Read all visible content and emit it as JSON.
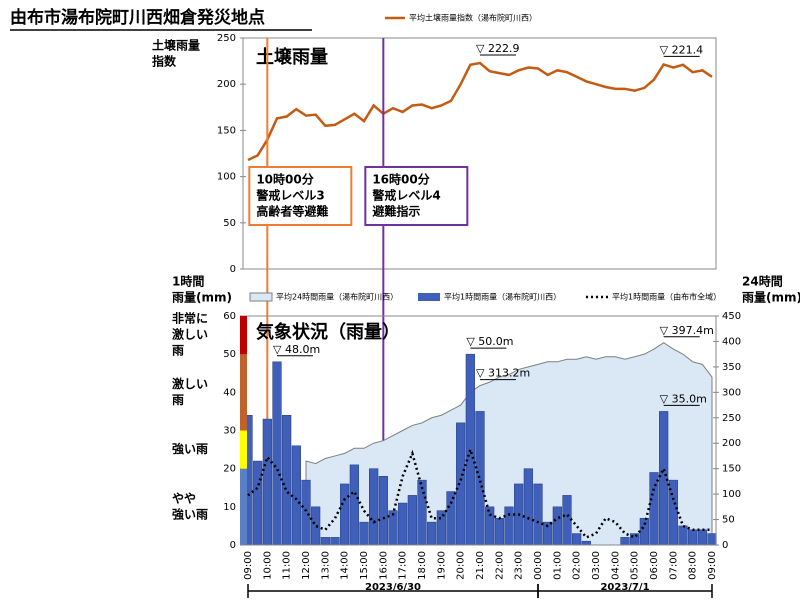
{
  "title": "由布市湯布院町川西畑倉発災地点",
  "chart_data": [
    {
      "type": "line",
      "panel_title": "土壌雨量",
      "ylabel": [
        "土壌雨量",
        "指数"
      ],
      "categories": [
        "09:00",
        null,
        "10:00",
        null,
        "11:00",
        null,
        "12:00",
        null,
        "13:00",
        null,
        "14:00",
        null,
        "15:00",
        null,
        "16:00",
        null,
        "17:00",
        null,
        "18:00",
        null,
        "19:00",
        null,
        "20:00",
        null,
        "21:00",
        null,
        "22:00",
        null,
        "23:00",
        null,
        "00:00",
        null,
        "01:00",
        null,
        "02:00",
        null,
        "03:00",
        null,
        "04:00",
        null,
        "05:00",
        null,
        "06:00",
        null,
        "07:00",
        null,
        "08:00",
        null,
        "09:00"
      ],
      "series": [
        {
          "name": "平均土壌雨量指数（湯布院町川西）",
          "color": "#c55a11",
          "values": [
            118,
            123,
            140,
            163,
            165,
            173,
            166,
            167,
            155,
            156,
            162,
            168,
            160,
            177,
            168,
            174,
            170,
            177,
            178,
            174,
            177,
            182,
            200,
            221,
            222.9,
            214,
            212,
            210,
            215,
            218,
            217,
            210,
            215,
            213,
            208,
            203,
            200,
            197,
            195,
            195,
            193,
            196,
            205,
            221.4,
            218,
            221,
            213,
            215,
            208
          ],
          "value_labels": [
            null,
            null,
            null,
            null,
            null,
            null,
            null,
            null,
            null,
            null,
            null,
            null,
            null,
            null,
            null,
            null,
            null,
            null,
            null,
            null,
            null,
            null,
            null,
            null,
            "▽ 222.9",
            null,
            null,
            null,
            null,
            null,
            null,
            null,
            null,
            null,
            null,
            null,
            null,
            null,
            null,
            null,
            null,
            null,
            null,
            "▽ 221.4",
            null,
            null,
            null,
            null,
            null
          ]
        }
      ],
      "ylim": [
        0,
        250
      ],
      "yticks": [
        0,
        50,
        100,
        150,
        200,
        250
      ],
      "grid": false,
      "events": [
        {
          "x": "10:00",
          "color": "#ed7d31",
          "text": [
            "10時00分",
            "警戒レベル3",
            "高齢者等避難"
          ]
        },
        {
          "x": "16:00",
          "color": "#7030a0",
          "text": [
            "16時00分",
            "警戒レベル4",
            "避難指示"
          ]
        }
      ]
    },
    {
      "type": "combo",
      "panel_title": "気象状況（雨量）",
      "ylabel": [
        "1時間",
        "雨量(mm)"
      ],
      "y2label": [
        "24時間",
        "雨量(mm)"
      ],
      "categories": [
        "09:00",
        null,
        "10:00",
        null,
        "11:00",
        null,
        "12:00",
        null,
        "13:00",
        null,
        "14:00",
        null,
        "15:00",
        null,
        "16:00",
        null,
        "17:00",
        null,
        "18:00",
        null,
        "19:00",
        null,
        "20:00",
        null,
        "21:00",
        null,
        "22:00",
        null,
        "23:00",
        null,
        "00:00",
        null,
        "01:00",
        null,
        "02:00",
        null,
        "03:00",
        null,
        "04:00",
        null,
        "05:00",
        null,
        "06:00",
        null,
        "07:00",
        null,
        "08:00",
        null,
        "09:00"
      ],
      "dates": [
        {
          "label": "2023/6/30",
          "from": "09:00",
          "to": "00:00"
        },
        {
          "label": "2023/7/1",
          "from": "00:00",
          "to": "09:00"
        }
      ],
      "series": [
        {
          "name": "平均24時間雨量（湯布院町川西）",
          "kind": "area",
          "axis": "y2",
          "color": "#dae8f6",
          "edge": "#7f7f7f",
          "values": [
            null,
            null,
            null,
            null,
            null,
            null,
            165,
            160,
            170,
            175,
            180,
            190,
            190,
            200,
            205,
            215,
            225,
            235,
            240,
            250,
            255,
            265,
            275,
            300,
            313.2,
            320,
            330,
            335,
            345,
            350,
            355,
            360,
            360,
            365,
            365,
            370,
            365,
            370,
            370,
            365,
            370,
            375,
            385,
            397.4,
            385,
            375,
            360,
            355,
            330
          ],
          "value_labels": [
            null,
            null,
            null,
            null,
            null,
            null,
            null,
            null,
            null,
            null,
            null,
            null,
            null,
            null,
            null,
            null,
            null,
            null,
            null,
            null,
            null,
            null,
            null,
            null,
            "▽ 313.2m",
            null,
            null,
            null,
            null,
            null,
            null,
            null,
            null,
            null,
            null,
            null,
            null,
            null,
            null,
            null,
            null,
            null,
            null,
            "▽ 397.4m",
            null,
            null,
            null,
            null,
            null
          ]
        },
        {
          "name": "平均1時間雨量（湯布院町川西）",
          "kind": "bar",
          "color": "#3f5fb8",
          "values": [
            34,
            22,
            33,
            48,
            34,
            26,
            17,
            10,
            2,
            2,
            16,
            21,
            6,
            20,
            18,
            9,
            11,
            13,
            17,
            6,
            9,
            14,
            32,
            50,
            35,
            10,
            7,
            10,
            16,
            20,
            16,
            6,
            10,
            13,
            3,
            1,
            0,
            0,
            0,
            2,
            3,
            7,
            19,
            35,
            17,
            5,
            4,
            4,
            3
          ],
          "value_labels": [
            null,
            null,
            null,
            "▽ 48.0m",
            null,
            null,
            null,
            null,
            null,
            null,
            null,
            null,
            null,
            null,
            null,
            null,
            null,
            null,
            null,
            null,
            null,
            null,
            null,
            "▽ 50.0m",
            null,
            null,
            null,
            null,
            null,
            null,
            null,
            null,
            null,
            null,
            null,
            null,
            null,
            null,
            null,
            null,
            null,
            null,
            null,
            "▽ 35.0m",
            null,
            null,
            null,
            null,
            null
          ]
        },
        {
          "name": "平均1時間雨量（由布市全域）",
          "kind": "dotted",
          "color": "#000000",
          "values": [
            13,
            15,
            23,
            20,
            14,
            12,
            9,
            5,
            4,
            7,
            12,
            14,
            9,
            6,
            7,
            8,
            18,
            24,
            15,
            7,
            7,
            11,
            17,
            25,
            17,
            8,
            7,
            8,
            8,
            7,
            6,
            5,
            7,
            8,
            5,
            2,
            3,
            7,
            6,
            3,
            2,
            5,
            15,
            20,
            12,
            5,
            4,
            4,
            4
          ]
        }
      ],
      "ylim": [
        0,
        60
      ],
      "yticks": [
        0,
        10,
        20,
        30,
        40,
        50,
        60
      ],
      "y2lim": [
        0,
        450
      ],
      "y2ticks": [
        0,
        50,
        100,
        150,
        200,
        250,
        300,
        350,
        400,
        450
      ],
      "levels": [
        {
          "label": [
            "やや",
            "強い雨"
          ],
          "from": 0,
          "to": 20,
          "color": "#5b7fc4"
        },
        {
          "label": [
            "強い雨"
          ],
          "from": 20,
          "to": 30,
          "color": "#ffff00"
        },
        {
          "label": [
            "激しい",
            "雨"
          ],
          "from": 30,
          "to": 50,
          "color": "#c0602a"
        },
        {
          "label": [
            "非常に",
            "激しい",
            "雨"
          ],
          "from": 50,
          "to": 60,
          "color": "#c00000"
        }
      ]
    }
  ]
}
